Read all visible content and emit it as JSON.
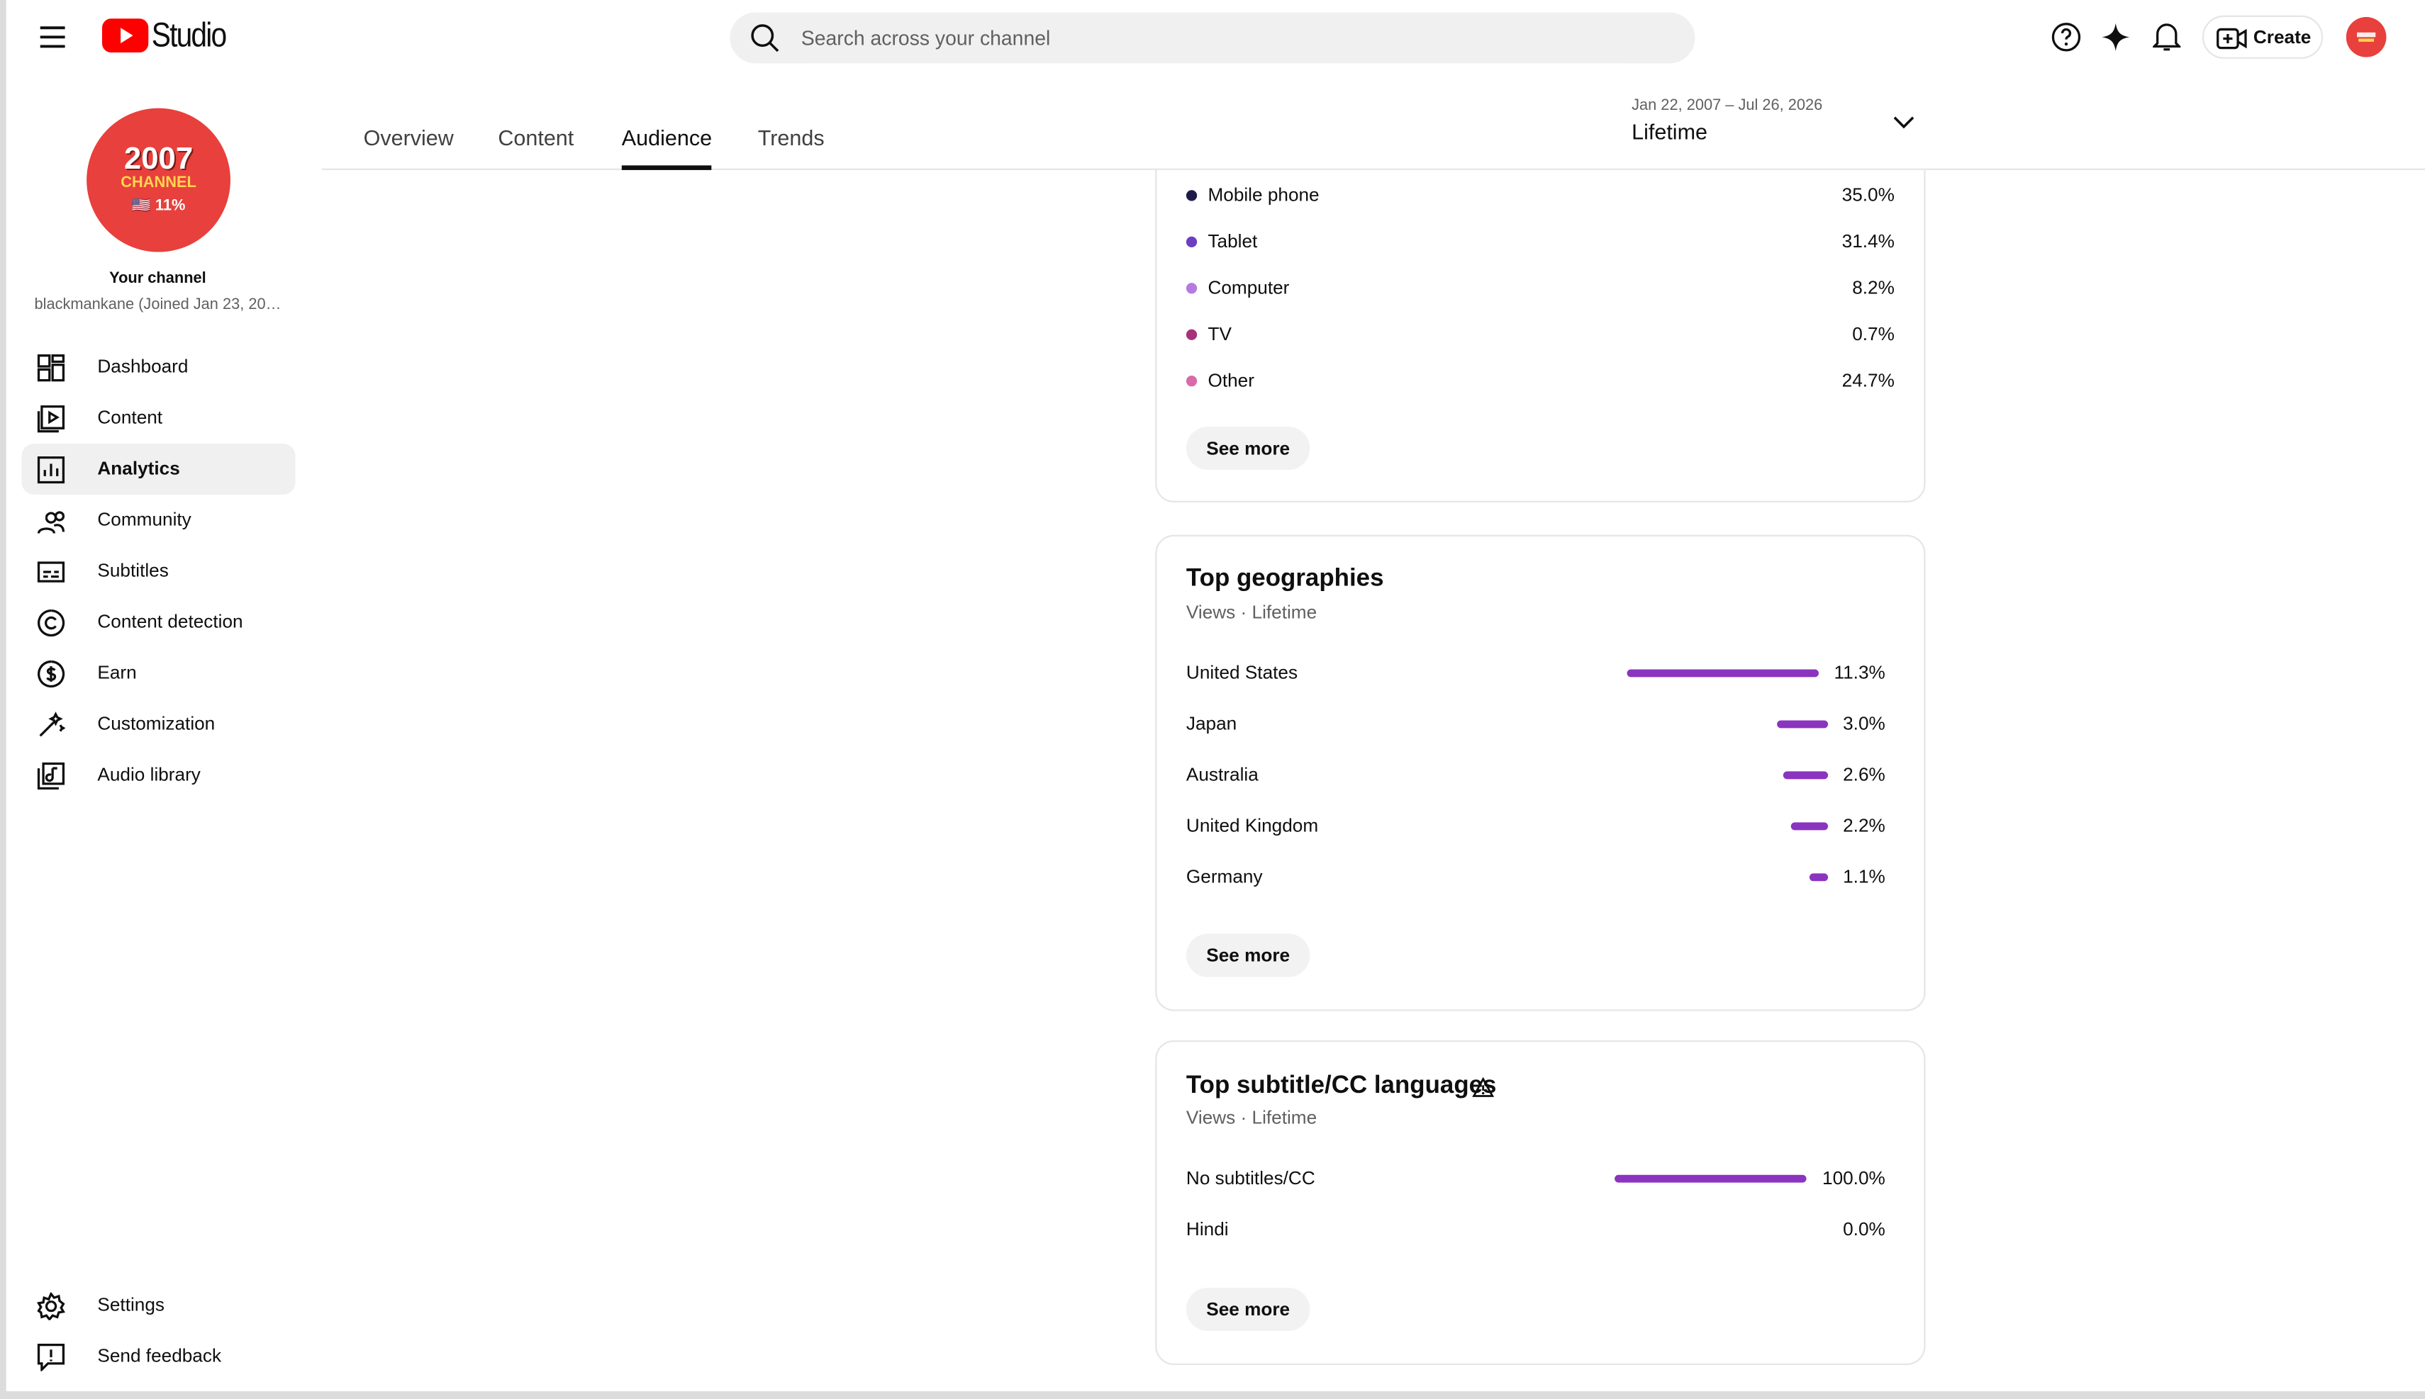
{
  "header": {
    "logo": "Studio",
    "search_placeholder": "Search across your channel",
    "create": "Create"
  },
  "sidebar": {
    "avatar": {
      "line1": "2007",
      "line2": "CHANNEL",
      "line3": "🇺🇸 11%"
    },
    "channel_title": "Your channel",
    "channel_subtitle": "blackmankane (Joined Jan 23, 20…",
    "nav": [
      "Dashboard",
      "Content",
      "Analytics",
      "Community",
      "Subtitles",
      "Content detection",
      "Earn",
      "Customization",
      "Audio library"
    ],
    "active_index": 2,
    "footer_nav": [
      "Settings",
      "Send feedback"
    ]
  },
  "tabs": {
    "items": [
      "Overview",
      "Content",
      "Audience",
      "Trends"
    ],
    "active_index": 2
  },
  "date_range": {
    "range": "Jan 22, 2007 – Jul 26, 2026",
    "period": "Lifetime"
  },
  "devices": {
    "items": [
      {
        "name": "Mobile phone",
        "value": "35.0%",
        "color": "#1e1b4b"
      },
      {
        "name": "Tablet",
        "value": "31.4%",
        "color": "#6b3fc0"
      },
      {
        "name": "Computer",
        "value": "8.2%",
        "color": "#b57be0"
      },
      {
        "name": "TV",
        "value": "0.7%",
        "color": "#a8327a"
      },
      {
        "name": "Other",
        "value": "24.7%",
        "color": "#d96ba8"
      }
    ],
    "button": "See more"
  },
  "geographies": {
    "title": "Top geographies",
    "subtitle": "Views · Lifetime",
    "color": "#8a34c0",
    "items": [
      {
        "name": "United States",
        "value": 11.3,
        "label": "11.3%"
      },
      {
        "name": "Japan",
        "value": 3.0,
        "label": "3.0%"
      },
      {
        "name": "Australia",
        "value": 2.6,
        "label": "2.6%"
      },
      {
        "name": "United Kingdom",
        "value": 2.2,
        "label": "2.2%"
      },
      {
        "name": "Germany",
        "value": 1.1,
        "label": "1.1%"
      }
    ],
    "button": "See more"
  },
  "subtitles": {
    "title": "Top subtitle/CC languages",
    "subtitle": "Views · Lifetime",
    "color": "#8a34c0",
    "items": [
      {
        "name": "No subtitles/CC",
        "value": 100.0,
        "label": "100.0%"
      },
      {
        "name": "Hindi",
        "value": 0.0,
        "label": "0.0%"
      }
    ],
    "button": "See more"
  }
}
